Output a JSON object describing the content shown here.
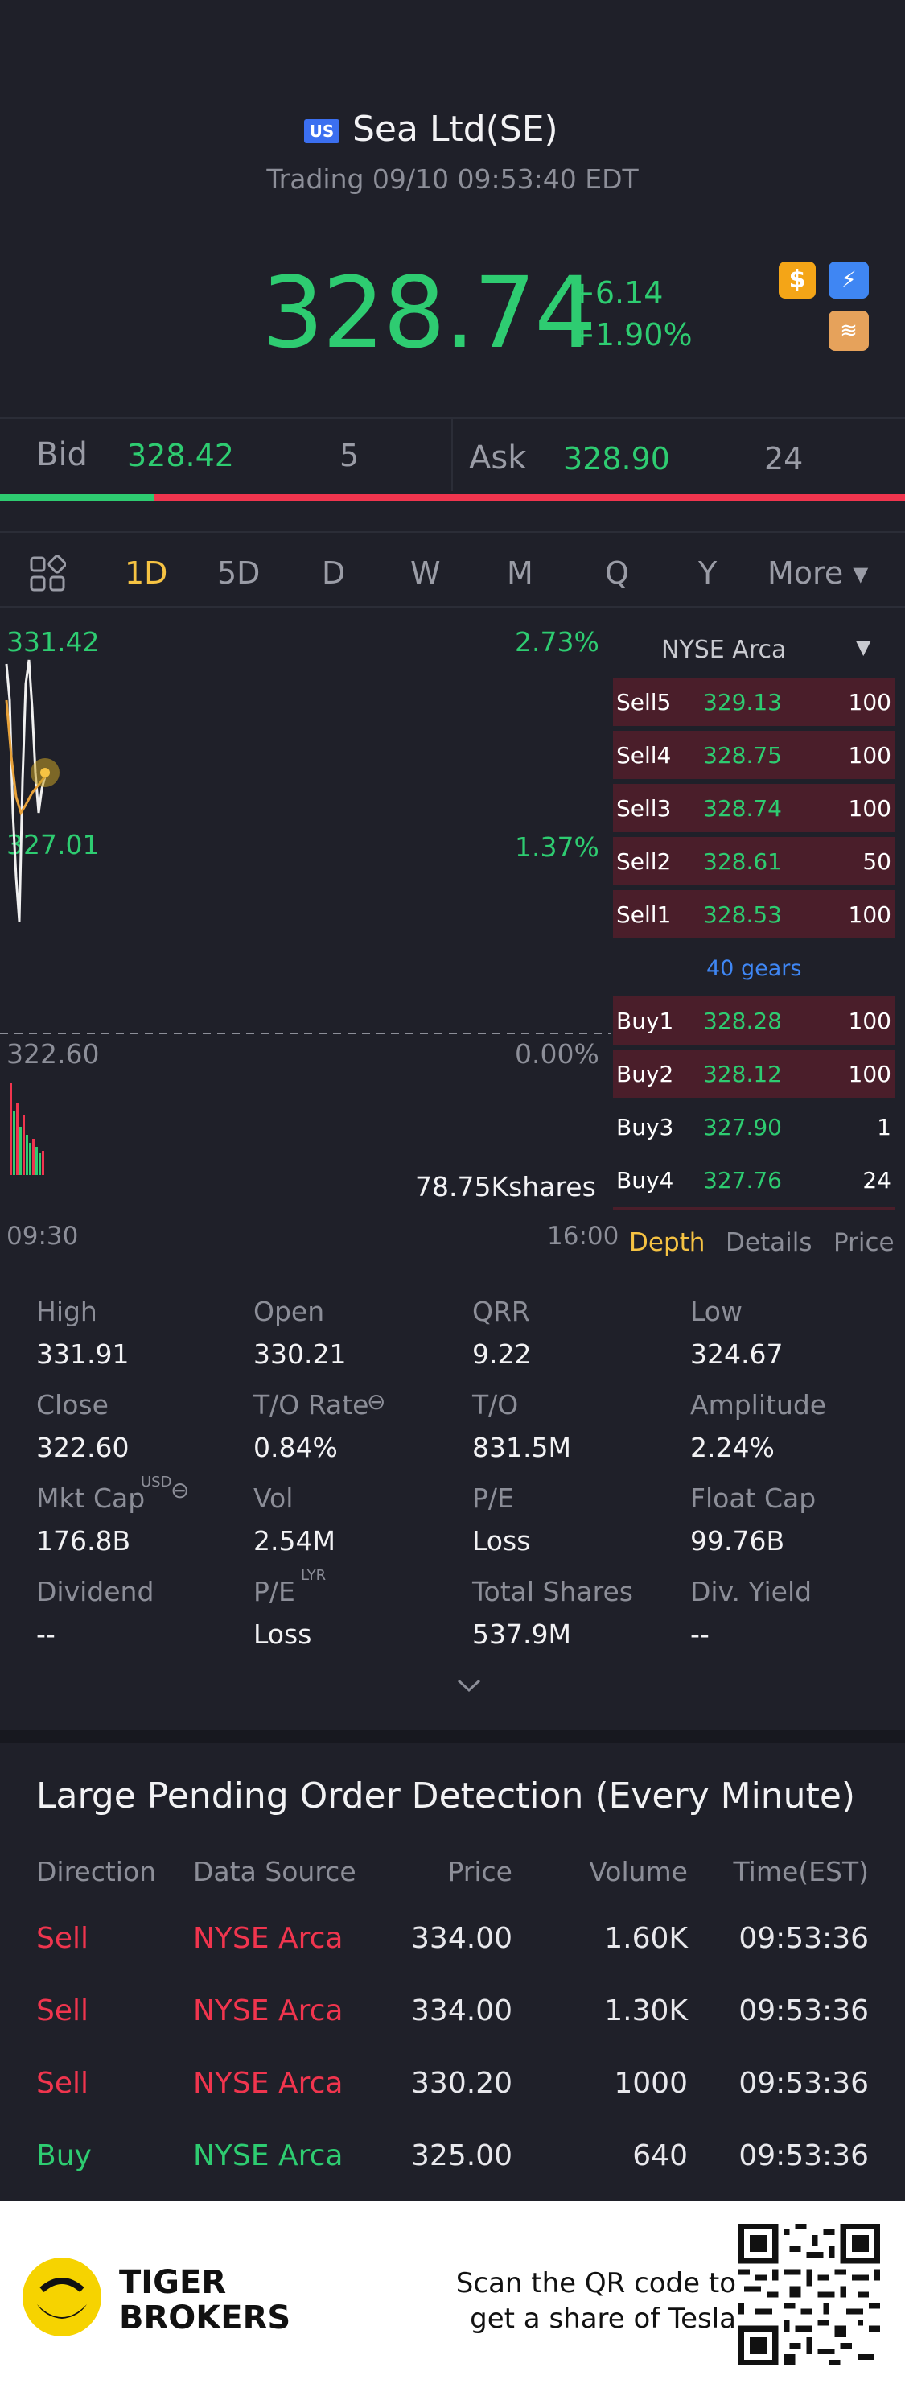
{
  "header": {
    "market_badge": "US",
    "name": "Sea Ltd(SE)",
    "trading_status": "Trading 09/10 09:53:40 EDT",
    "price": "328.74",
    "change": "+6.14",
    "change_pct": "+1.90%"
  },
  "bidask": {
    "bid_label": "Bid",
    "bid_price": "328.42",
    "bid_size": "5",
    "ask_label": "Ask",
    "ask_price": "328.90",
    "ask_size": "24",
    "bid_share": 0.17
  },
  "tabs": [
    "1D",
    "5D",
    "D",
    "W",
    "M",
    "Q",
    "Y",
    "More ▾"
  ],
  "chart": {
    "y_top": "331.42",
    "y_mid": "327.01",
    "y_base": "322.60",
    "pct_top": "2.73%",
    "pct_mid": "1.37%",
    "pct_base": "0.00%",
    "volume_label": "78.75Kshares",
    "time_start": "09:30",
    "time_end": "16:00"
  },
  "book": {
    "exchange": "NYSE Arca",
    "sells": [
      {
        "name": "Sell5",
        "price": "329.13",
        "vol": "100"
      },
      {
        "name": "Sell4",
        "price": "328.75",
        "vol": "100"
      },
      {
        "name": "Sell3",
        "price": "328.74",
        "vol": "100"
      },
      {
        "name": "Sell2",
        "price": "328.61",
        "vol": "50"
      },
      {
        "name": "Sell1",
        "price": "328.53",
        "vol": "100"
      }
    ],
    "gears": "40 gears",
    "buys": [
      {
        "name": "Buy1",
        "price": "328.28",
        "vol": "100"
      },
      {
        "name": "Buy2",
        "price": "328.12",
        "vol": "100"
      },
      {
        "name": "Buy3",
        "price": "327.90",
        "vol": "1"
      },
      {
        "name": "Buy4",
        "price": "327.76",
        "vol": "24"
      }
    ],
    "tab_depth": "Depth",
    "tab_details": "Details",
    "tab_price": "Price"
  },
  "stats": [
    {
      "label": "High",
      "value": "331.91"
    },
    {
      "label": "Open",
      "value": "330.21"
    },
    {
      "label": "QRR",
      "value": "9.22"
    },
    {
      "label": "Low",
      "value": "324.67"
    },
    {
      "label": "Close",
      "value": "322.60"
    },
    {
      "label": "T/O Rate",
      "value": "0.84%"
    },
    {
      "label": "T/O",
      "value": "831.5M"
    },
    {
      "label": "Amplitude",
      "value": "2.24%"
    },
    {
      "label": "Mkt Cap",
      "value": "176.8B"
    },
    {
      "label": "Vol",
      "value": "2.54M"
    },
    {
      "label": "P/E",
      "value": "Loss"
    },
    {
      "label": "Float Cap",
      "value": "99.76B"
    },
    {
      "label": "Dividend",
      "value": "--"
    },
    {
      "label": "P/E",
      "value": "Loss"
    },
    {
      "label": "Total Shares",
      "value": "537.9M"
    },
    {
      "label": "Div. Yield",
      "value": "--"
    }
  ],
  "stats_superscripts": {
    "usd": "USD",
    "lyr": "LYR"
  },
  "large_orders": {
    "title": "Large Pending Order Detection (Every Minute)",
    "headers": [
      "Direction",
      "Data Source",
      "Price",
      "Volume",
      "Time(EST)"
    ],
    "rows": [
      {
        "dir": "Sell",
        "src": "NYSE Arca",
        "price": "334.00",
        "vol": "1.60K",
        "time": "09:53:36"
      },
      {
        "dir": "Sell",
        "src": "NYSE Arca",
        "price": "334.00",
        "vol": "1.30K",
        "time": "09:53:36"
      },
      {
        "dir": "Sell",
        "src": "NYSE Arca",
        "price": "330.20",
        "vol": "1000",
        "time": "09:53:36"
      },
      {
        "dir": "Buy",
        "src": "NYSE Arca",
        "price": "325.00",
        "vol": "640",
        "time": "09:53:36"
      }
    ]
  },
  "footer": {
    "brand_line1": "TIGER",
    "brand_line2": "BROKERS",
    "scan_line1": "Scan the QR code to",
    "scan_line2": "get a share of Tesla"
  },
  "colors": {
    "up": "#2ecc71",
    "down": "#f0354e",
    "accent": "#f6c343",
    "link": "#3f86f3"
  }
}
